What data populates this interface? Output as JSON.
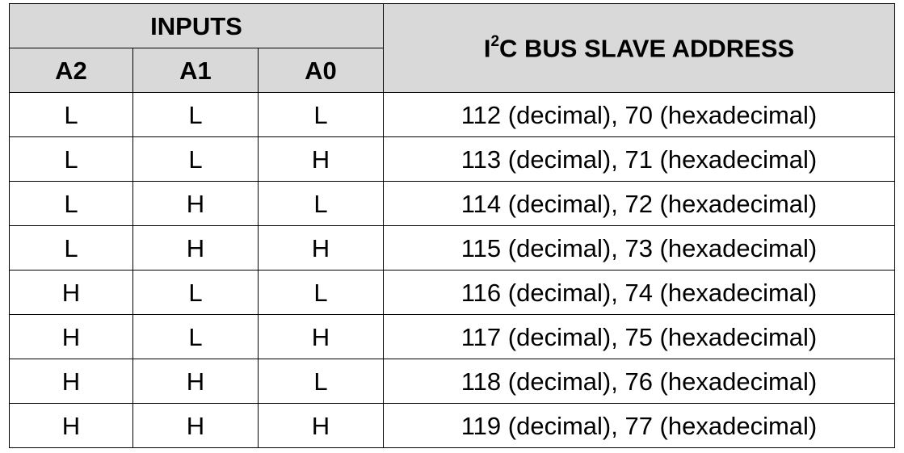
{
  "header": {
    "inputs": "INPUTS",
    "address_prefix": "I",
    "address_sup": "2",
    "address_suffix": "C BUS SLAVE ADDRESS",
    "cols": [
      "A2",
      "A1",
      "A0"
    ]
  },
  "rows": [
    {
      "a2": "L",
      "a1": "L",
      "a0": "L",
      "addr": "112 (decimal), 70 (hexadecimal)"
    },
    {
      "a2": "L",
      "a1": "L",
      "a0": "H",
      "addr": "113 (decimal), 71 (hexadecimal)"
    },
    {
      "a2": "L",
      "a1": "H",
      "a0": "L",
      "addr": "114 (decimal), 72 (hexadecimal)"
    },
    {
      "a2": "L",
      "a1": "H",
      "a0": "H",
      "addr": "115 (decimal), 73 (hexadecimal)"
    },
    {
      "a2": "H",
      "a1": "L",
      "a0": "L",
      "addr": "116 (decimal), 74 (hexadecimal)"
    },
    {
      "a2": "H",
      "a1": "L",
      "a0": "H",
      "addr": "117 (decimal), 75 (hexadecimal)"
    },
    {
      "a2": "H",
      "a1": "H",
      "a0": "L",
      "addr": "118 (decimal), 76 (hexadecimal)"
    },
    {
      "a2": "H",
      "a1": "H",
      "a0": "H",
      "addr": "119 (decimal), 77 (hexadecimal)"
    }
  ],
  "colors": {
    "header_bg": "#d9d9d9",
    "border": "#000000"
  }
}
